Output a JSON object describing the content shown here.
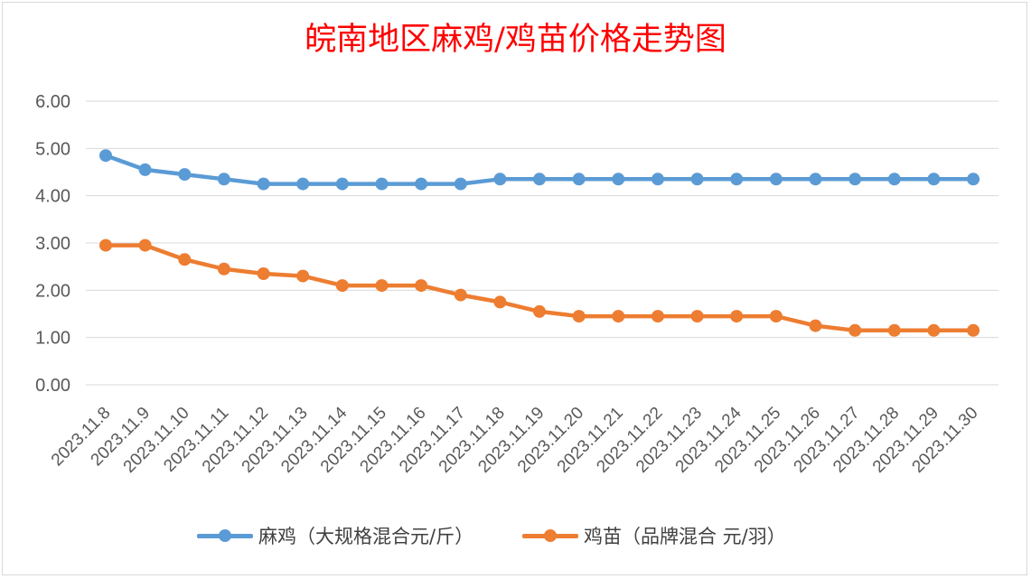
{
  "colors": {
    "series_0": "#5b9bd5",
    "series_1": "#ed7d31",
    "title": "#ff0000",
    "axis_text": "#595959",
    "grid": "#d9d9d9"
  },
  "chart_data": {
    "type": "line",
    "title": "皖南地区麻鸡/鸡苗价格走势图",
    "xlabel": "",
    "ylabel": "",
    "ylim": [
      0,
      6
    ],
    "y_ticks": [
      "0.00",
      "1.00",
      "2.00",
      "3.00",
      "4.00",
      "5.00",
      "6.00"
    ],
    "grid": true,
    "legend_position": "bottom",
    "categories": [
      "2023.11.8",
      "2023.11.9",
      "2023.11.10",
      "2023.11.11",
      "2023.11.12",
      "2023.11.13",
      "2023.11.14",
      "2023.11.15",
      "2023.11.16",
      "2023.11.17",
      "2023.11.18",
      "2023.11.19",
      "2023.11.20",
      "2023.11.21",
      "2023.11.22",
      "2023.11.23",
      "2023.11.24",
      "2023.11.25",
      "2023.11.26",
      "2023.11.27",
      "2023.11.28",
      "2023.11.29",
      "2023.11.30"
    ],
    "series": [
      {
        "name": "麻鸡（大规格混合元/斤）",
        "values": [
          4.85,
          4.55,
          4.45,
          4.35,
          4.25,
          4.25,
          4.25,
          4.25,
          4.25,
          4.25,
          4.35,
          4.35,
          4.35,
          4.35,
          4.35,
          4.35,
          4.35,
          4.35,
          4.35,
          4.35,
          4.35,
          4.35,
          4.35
        ]
      },
      {
        "name": "鸡苗（品牌混合 元/羽）",
        "values": [
          2.95,
          2.95,
          2.65,
          2.45,
          2.35,
          2.3,
          2.1,
          2.1,
          2.1,
          1.9,
          1.75,
          1.55,
          1.45,
          1.45,
          1.45,
          1.45,
          1.45,
          1.45,
          1.25,
          1.15,
          1.15,
          1.15,
          1.15
        ]
      }
    ]
  }
}
